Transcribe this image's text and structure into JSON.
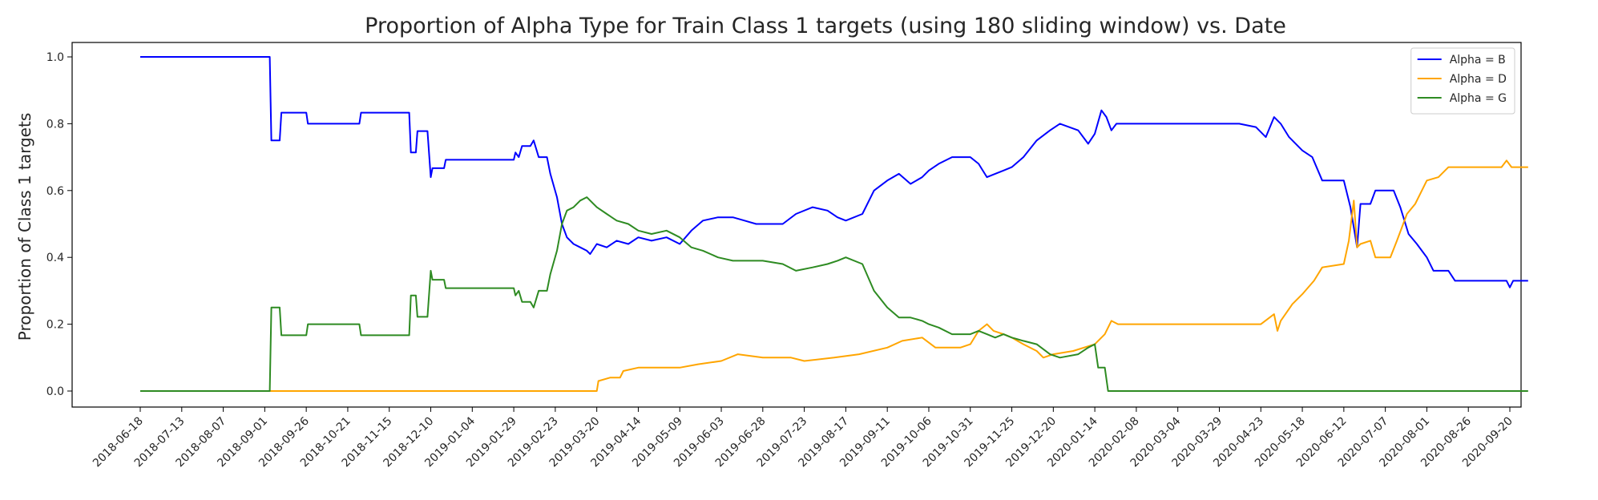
{
  "chart_data": {
    "type": "line",
    "title": "Proportion of Alpha Type for Train Class 1 targets (using 180 sliding window) vs. Date",
    "xlabel": "",
    "ylabel": "Proportion of Class 1 targets",
    "ylim": [
      -0.05,
      1.05
    ],
    "yticks": [
      "0.0",
      "0.2",
      "0.4",
      "0.6",
      "0.8",
      "1.0"
    ],
    "x_ticks": [
      "2018-06-18",
      "2018-07-13",
      "2018-08-07",
      "2018-09-01",
      "2018-09-26",
      "2018-10-21",
      "2018-11-15",
      "2018-12-10",
      "2019-01-04",
      "2019-01-29",
      "2019-02-23",
      "2019-03-20",
      "2019-04-14",
      "2019-05-09",
      "2019-06-03",
      "2019-06-28",
      "2019-07-23",
      "2019-08-17",
      "2019-09-11",
      "2019-10-06",
      "2019-10-31",
      "2019-11-25",
      "2019-12-20",
      "2020-01-14",
      "2020-02-08",
      "2020-03-04",
      "2020-03-29",
      "2020-04-23",
      "2020-05-18",
      "2020-06-12",
      "2020-07-07",
      "2020-08-01",
      "2020-08-26",
      "2020-09-20"
    ],
    "grid": false,
    "legend_position": "top-right",
    "series": [
      {
        "name": "Alpha = B",
        "color": "#0000ff",
        "points": [
          [
            "2018-06-18",
            1.0
          ],
          [
            "2018-09-04",
            1.0
          ],
          [
            "2018-09-05",
            0.75
          ],
          [
            "2018-09-10",
            0.75
          ],
          [
            "2018-09-11",
            0.833
          ],
          [
            "2018-09-26",
            0.833
          ],
          [
            "2018-09-27",
            0.8
          ],
          [
            "2018-10-28",
            0.8
          ],
          [
            "2018-10-29",
            0.833
          ],
          [
            "2018-11-27",
            0.833
          ],
          [
            "2018-11-28",
            0.714
          ],
          [
            "2018-12-01",
            0.714
          ],
          [
            "2018-12-02",
            0.778
          ],
          [
            "2018-12-08",
            0.778
          ],
          [
            "2018-12-10",
            0.64
          ],
          [
            "2018-12-11",
            0.667
          ],
          [
            "2018-12-18",
            0.667
          ],
          [
            "2018-12-19",
            0.692
          ],
          [
            "2019-01-29",
            0.692
          ],
          [
            "2019-01-30",
            0.714
          ],
          [
            "2019-02-01",
            0.7
          ],
          [
            "2019-02-03",
            0.733
          ],
          [
            "2019-02-08",
            0.733
          ],
          [
            "2019-02-10",
            0.75
          ],
          [
            "2019-02-13",
            0.7
          ],
          [
            "2019-02-18",
            0.7
          ],
          [
            "2019-02-20",
            0.65
          ],
          [
            "2019-02-24",
            0.58
          ],
          [
            "2019-02-27",
            0.5
          ],
          [
            "2019-03-02",
            0.46
          ],
          [
            "2019-03-06",
            0.44
          ],
          [
            "2019-03-10",
            0.43
          ],
          [
            "2019-03-14",
            0.42
          ],
          [
            "2019-03-16",
            0.41
          ],
          [
            "2019-03-20",
            0.44
          ],
          [
            "2019-03-26",
            0.43
          ],
          [
            "2019-04-01",
            0.45
          ],
          [
            "2019-04-08",
            0.44
          ],
          [
            "2019-04-14",
            0.46
          ],
          [
            "2019-04-22",
            0.45
          ],
          [
            "2019-05-01",
            0.46
          ],
          [
            "2019-05-09",
            0.44
          ],
          [
            "2019-05-16",
            0.48
          ],
          [
            "2019-05-23",
            0.51
          ],
          [
            "2019-06-01",
            0.52
          ],
          [
            "2019-06-10",
            0.52
          ],
          [
            "2019-06-17",
            0.51
          ],
          [
            "2019-06-24",
            0.5
          ],
          [
            "2019-07-10",
            0.5
          ],
          [
            "2019-07-18",
            0.53
          ],
          [
            "2019-07-28",
            0.55
          ],
          [
            "2019-08-06",
            0.54
          ],
          [
            "2019-08-12",
            0.52
          ],
          [
            "2019-08-17",
            0.51
          ],
          [
            "2019-08-27",
            0.53
          ],
          [
            "2019-09-03",
            0.6
          ],
          [
            "2019-09-11",
            0.63
          ],
          [
            "2019-09-18",
            0.65
          ],
          [
            "2019-09-25",
            0.62
          ],
          [
            "2019-10-02",
            0.64
          ],
          [
            "2019-10-06",
            0.66
          ],
          [
            "2019-10-12",
            0.68
          ],
          [
            "2019-10-20",
            0.7
          ],
          [
            "2019-10-31",
            0.7
          ],
          [
            "2019-11-05",
            0.68
          ],
          [
            "2019-11-10",
            0.64
          ],
          [
            "2019-11-15",
            0.65
          ],
          [
            "2019-11-20",
            0.66
          ],
          [
            "2019-11-25",
            0.67
          ],
          [
            "2019-12-02",
            0.7
          ],
          [
            "2019-12-10",
            0.75
          ],
          [
            "2019-12-18",
            0.78
          ],
          [
            "2019-12-24",
            0.8
          ],
          [
            "2020-01-04",
            0.78
          ],
          [
            "2020-01-10",
            0.74
          ],
          [
            "2020-01-14",
            0.77
          ],
          [
            "2020-01-18",
            0.84
          ],
          [
            "2020-01-21",
            0.82
          ],
          [
            "2020-01-24",
            0.78
          ],
          [
            "2020-01-27",
            0.8
          ],
          [
            "2020-02-08",
            0.8
          ],
          [
            "2020-04-10",
            0.8
          ],
          [
            "2020-04-20",
            0.79
          ],
          [
            "2020-04-26",
            0.76
          ],
          [
            "2020-05-01",
            0.82
          ],
          [
            "2020-05-05",
            0.8
          ],
          [
            "2020-05-10",
            0.76
          ],
          [
            "2020-05-18",
            0.72
          ],
          [
            "2020-05-24",
            0.7
          ],
          [
            "2020-05-30",
            0.63
          ],
          [
            "2020-06-12",
            0.63
          ],
          [
            "2020-06-16",
            0.55
          ],
          [
            "2020-06-20",
            0.43
          ],
          [
            "2020-06-22",
            0.56
          ],
          [
            "2020-06-28",
            0.56
          ],
          [
            "2020-07-01",
            0.6
          ],
          [
            "2020-07-12",
            0.6
          ],
          [
            "2020-07-16",
            0.55
          ],
          [
            "2020-07-21",
            0.47
          ],
          [
            "2020-07-26",
            0.44
          ],
          [
            "2020-08-01",
            0.4
          ],
          [
            "2020-08-05",
            0.36
          ],
          [
            "2020-08-14",
            0.36
          ],
          [
            "2020-08-18",
            0.33
          ],
          [
            "2020-09-18",
            0.33
          ],
          [
            "2020-09-20",
            0.31
          ],
          [
            "2020-09-22",
            0.33
          ],
          [
            "2020-10-01",
            0.33
          ]
        ]
      },
      {
        "name": "Alpha = D",
        "color": "#ffa500",
        "points": [
          [
            "2018-06-18",
            0.0
          ],
          [
            "2019-03-20",
            0.0
          ],
          [
            "2019-03-21",
            0.03
          ],
          [
            "2019-03-28",
            0.04
          ],
          [
            "2019-04-03",
            0.04
          ],
          [
            "2019-04-05",
            0.06
          ],
          [
            "2019-04-14",
            0.07
          ],
          [
            "2019-05-09",
            0.07
          ],
          [
            "2019-05-20",
            0.08
          ],
          [
            "2019-06-03",
            0.09
          ],
          [
            "2019-06-13",
            0.11
          ],
          [
            "2019-06-28",
            0.1
          ],
          [
            "2019-07-15",
            0.1
          ],
          [
            "2019-07-23",
            0.09
          ],
          [
            "2019-08-10",
            0.1
          ],
          [
            "2019-08-25",
            0.11
          ],
          [
            "2019-09-11",
            0.13
          ],
          [
            "2019-09-20",
            0.15
          ],
          [
            "2019-10-02",
            0.16
          ],
          [
            "2019-10-10",
            0.13
          ],
          [
            "2019-10-25",
            0.13
          ],
          [
            "2019-10-31",
            0.14
          ],
          [
            "2019-11-05",
            0.18
          ],
          [
            "2019-11-10",
            0.2
          ],
          [
            "2019-11-14",
            0.18
          ],
          [
            "2019-11-20",
            0.17
          ],
          [
            "2019-11-25",
            0.16
          ],
          [
            "2019-12-02",
            0.14
          ],
          [
            "2019-12-10",
            0.12
          ],
          [
            "2019-12-14",
            0.1
          ],
          [
            "2019-12-20",
            0.11
          ],
          [
            "2020-01-01",
            0.12
          ],
          [
            "2020-01-14",
            0.14
          ],
          [
            "2020-01-20",
            0.17
          ],
          [
            "2020-01-24",
            0.21
          ],
          [
            "2020-01-28",
            0.2
          ],
          [
            "2020-04-23",
            0.2
          ],
          [
            "2020-05-01",
            0.23
          ],
          [
            "2020-05-03",
            0.18
          ],
          [
            "2020-05-05",
            0.21
          ],
          [
            "2020-05-12",
            0.26
          ],
          [
            "2020-05-18",
            0.29
          ],
          [
            "2020-05-25",
            0.33
          ],
          [
            "2020-05-30",
            0.37
          ],
          [
            "2020-06-12",
            0.38
          ],
          [
            "2020-06-15",
            0.45
          ],
          [
            "2020-06-18",
            0.57
          ],
          [
            "2020-06-20",
            0.43
          ],
          [
            "2020-06-22",
            0.44
          ],
          [
            "2020-06-28",
            0.45
          ],
          [
            "2020-07-01",
            0.4
          ],
          [
            "2020-07-10",
            0.4
          ],
          [
            "2020-07-14",
            0.45
          ],
          [
            "2020-07-20",
            0.53
          ],
          [
            "2020-07-25",
            0.56
          ],
          [
            "2020-07-29",
            0.6
          ],
          [
            "2020-08-01",
            0.63
          ],
          [
            "2020-08-08",
            0.64
          ],
          [
            "2020-08-14",
            0.67
          ],
          [
            "2020-09-15",
            0.67
          ],
          [
            "2020-09-18",
            0.69
          ],
          [
            "2020-09-21",
            0.67
          ],
          [
            "2020-10-01",
            0.67
          ]
        ]
      },
      {
        "name": "Alpha = G",
        "color": "#2e8b22",
        "points": [
          [
            "2018-06-18",
            0.0
          ],
          [
            "2018-09-04",
            0.0
          ],
          [
            "2018-09-05",
            0.25
          ],
          [
            "2018-09-10",
            0.25
          ],
          [
            "2018-09-11",
            0.167
          ],
          [
            "2018-09-26",
            0.167
          ],
          [
            "2018-09-27",
            0.2
          ],
          [
            "2018-10-28",
            0.2
          ],
          [
            "2018-10-29",
            0.167
          ],
          [
            "2018-11-27",
            0.167
          ],
          [
            "2018-11-28",
            0.286
          ],
          [
            "2018-12-01",
            0.286
          ],
          [
            "2018-12-02",
            0.222
          ],
          [
            "2018-12-08",
            0.222
          ],
          [
            "2018-12-10",
            0.36
          ],
          [
            "2018-12-11",
            0.333
          ],
          [
            "2018-12-18",
            0.333
          ],
          [
            "2018-12-19",
            0.308
          ],
          [
            "2019-01-29",
            0.308
          ],
          [
            "2019-01-30",
            0.286
          ],
          [
            "2019-02-01",
            0.3
          ],
          [
            "2019-02-03",
            0.267
          ],
          [
            "2019-02-08",
            0.267
          ],
          [
            "2019-02-10",
            0.25
          ],
          [
            "2019-02-13",
            0.3
          ],
          [
            "2019-02-18",
            0.3
          ],
          [
            "2019-02-20",
            0.35
          ],
          [
            "2019-02-24",
            0.42
          ],
          [
            "2019-02-27",
            0.5
          ],
          [
            "2019-03-02",
            0.54
          ],
          [
            "2019-03-06",
            0.55
          ],
          [
            "2019-03-10",
            0.57
          ],
          [
            "2019-03-14",
            0.58
          ],
          [
            "2019-03-20",
            0.55
          ],
          [
            "2019-03-26",
            0.53
          ],
          [
            "2019-04-01",
            0.51
          ],
          [
            "2019-04-08",
            0.5
          ],
          [
            "2019-04-14",
            0.48
          ],
          [
            "2019-04-22",
            0.47
          ],
          [
            "2019-05-01",
            0.48
          ],
          [
            "2019-05-09",
            0.46
          ],
          [
            "2019-05-16",
            0.43
          ],
          [
            "2019-05-23",
            0.42
          ],
          [
            "2019-06-01",
            0.4
          ],
          [
            "2019-06-10",
            0.39
          ],
          [
            "2019-06-28",
            0.39
          ],
          [
            "2019-07-10",
            0.38
          ],
          [
            "2019-07-18",
            0.36
          ],
          [
            "2019-07-28",
            0.37
          ],
          [
            "2019-08-06",
            0.38
          ],
          [
            "2019-08-12",
            0.39
          ],
          [
            "2019-08-17",
            0.4
          ],
          [
            "2019-08-27",
            0.38
          ],
          [
            "2019-09-03",
            0.3
          ],
          [
            "2019-09-11",
            0.25
          ],
          [
            "2019-09-18",
            0.22
          ],
          [
            "2019-09-25",
            0.22
          ],
          [
            "2019-10-02",
            0.21
          ],
          [
            "2019-10-06",
            0.2
          ],
          [
            "2019-10-12",
            0.19
          ],
          [
            "2019-10-20",
            0.17
          ],
          [
            "2019-10-31",
            0.17
          ],
          [
            "2019-11-05",
            0.18
          ],
          [
            "2019-11-10",
            0.17
          ],
          [
            "2019-11-15",
            0.16
          ],
          [
            "2019-11-20",
            0.17
          ],
          [
            "2019-11-25",
            0.16
          ],
          [
            "2019-12-02",
            0.15
          ],
          [
            "2019-12-10",
            0.14
          ],
          [
            "2019-12-18",
            0.11
          ],
          [
            "2019-12-24",
            0.1
          ],
          [
            "2020-01-04",
            0.11
          ],
          [
            "2020-01-10",
            0.13
          ],
          [
            "2020-01-14",
            0.14
          ],
          [
            "2020-01-16",
            0.07
          ],
          [
            "2020-01-20",
            0.07
          ],
          [
            "2020-01-22",
            0.0
          ],
          [
            "2020-10-01",
            0.0
          ]
        ]
      }
    ]
  }
}
